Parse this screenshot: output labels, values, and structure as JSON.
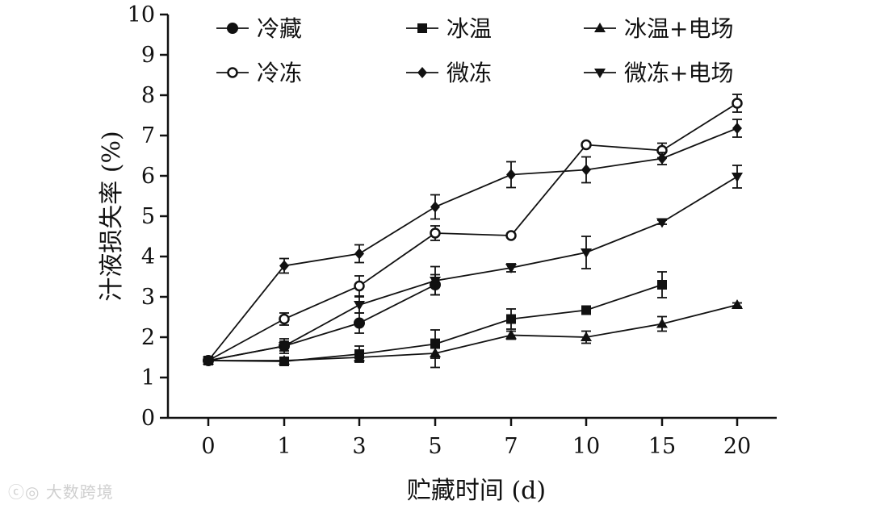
{
  "chart_data": {
    "type": "line",
    "title": "",
    "xlabel": "贮藏时间 (d)",
    "ylabel": "汁液损失率 (%)",
    "categories": [
      "0",
      "1",
      "3",
      "5",
      "7",
      "10",
      "15",
      "20"
    ],
    "ylim": [
      0,
      10
    ],
    "yticks": [
      0,
      1,
      2,
      3,
      4,
      5,
      6,
      7,
      8,
      9,
      10
    ],
    "grid": false,
    "legend_position": "top",
    "series": [
      {
        "name": "冷藏",
        "marker": "filled-circle",
        "values": [
          1.42,
          1.78,
          2.35,
          3.3,
          null,
          null,
          null,
          null
        ],
        "errors": [
          0.05,
          0.12,
          0.25,
          0.25,
          null,
          null,
          null,
          null
        ]
      },
      {
        "name": "冰温",
        "marker": "filled-square",
        "values": [
          1.42,
          1.4,
          1.58,
          1.83,
          2.45,
          2.67,
          3.3,
          null
        ],
        "errors": [
          0.05,
          0.07,
          0.2,
          0.35,
          0.25,
          0.1,
          0.32,
          null
        ]
      },
      {
        "name": "冰温+电场",
        "marker": "filled-triangle-up",
        "values": [
          1.42,
          1.42,
          1.5,
          1.6,
          2.05,
          2.0,
          2.33,
          2.8
        ],
        "errors": [
          0.05,
          0.07,
          0.1,
          0.35,
          0.1,
          0.15,
          0.18,
          0.05
        ]
      },
      {
        "name": "冷冻",
        "marker": "open-circle",
        "values": [
          1.42,
          2.45,
          3.27,
          4.58,
          4.52,
          6.77,
          6.63,
          7.8
        ],
        "errors": [
          0.05,
          0.15,
          0.25,
          0.18,
          0.05,
          0.05,
          0.18,
          0.22
        ]
      },
      {
        "name": "微冻",
        "marker": "filled-diamond",
        "values": [
          1.42,
          3.77,
          4.07,
          5.23,
          6.03,
          6.15,
          6.43,
          7.18
        ],
        "errors": [
          0.05,
          0.18,
          0.22,
          0.3,
          0.32,
          0.32,
          0.15,
          0.22
        ]
      },
      {
        "name": "微冻+电场",
        "marker": "filled-triangle-down",
        "values": [
          1.42,
          1.78,
          2.8,
          3.4,
          3.72,
          4.1,
          4.85,
          5.98
        ],
        "errors": [
          0.05,
          0.18,
          0.2,
          0.35,
          0.1,
          0.4,
          0.05,
          0.28
        ]
      }
    ]
  },
  "watermark": "大数跨境"
}
